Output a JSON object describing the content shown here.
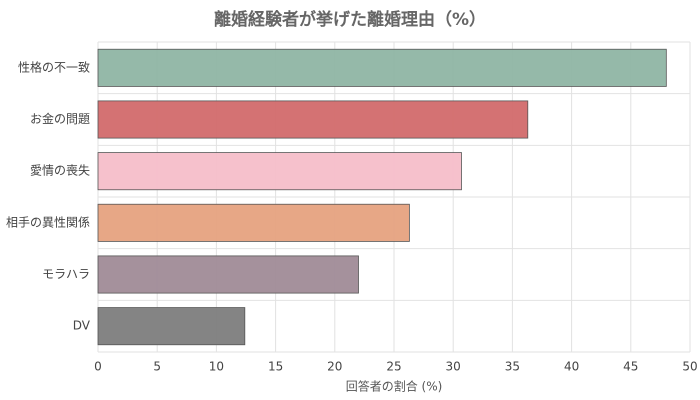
{
  "chart_data": {
    "type": "barh",
    "title": "離婚経験者が挙げた離婚理由（%）",
    "categories": [
      "性格の不一致",
      "お金の問題",
      "愛情の喪失",
      "相手の異性関係",
      "モラハラ",
      "DV"
    ],
    "values": [
      48,
      36.3,
      30.7,
      26.3,
      22,
      12.4
    ],
    "colors": [
      "#8fb5a4",
      "#d26a6b",
      "#f6bec9",
      "#e6a27f",
      "#a08b97",
      "#7d7d7d"
    ],
    "xlabel": "回答者の割合 (%)",
    "xlim": [
      0,
      50
    ],
    "xticks": [
      0,
      5,
      10,
      15,
      20,
      25,
      30,
      35,
      40,
      45,
      50
    ],
    "grid": true
  }
}
